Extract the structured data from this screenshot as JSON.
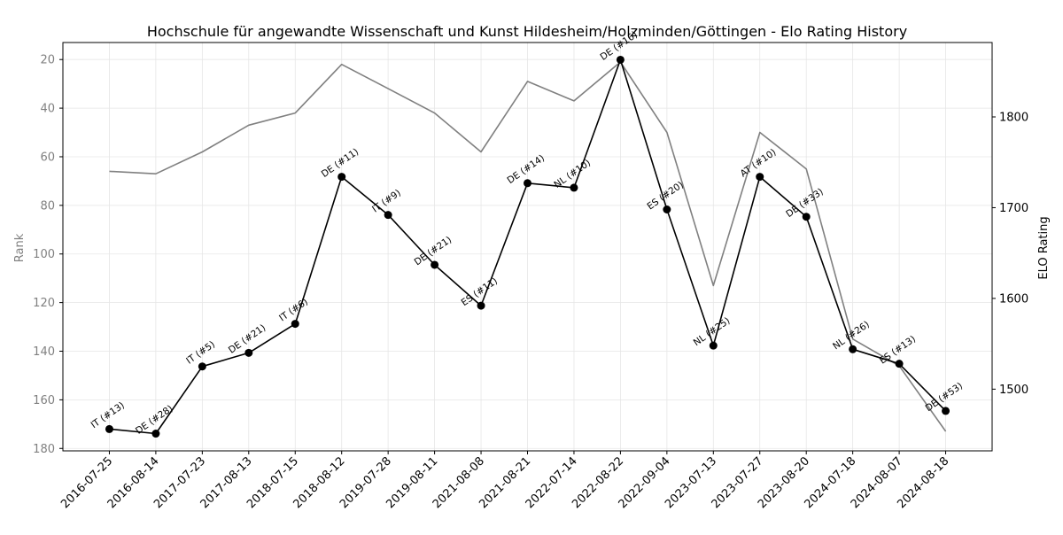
{
  "chart_data": {
    "type": "line",
    "title": "Hochschule für angewandte Wissenschaft und Kunst Hildesheim/Holzminden/Göttingen - Elo Rating History",
    "ylabel_left": "Rank",
    "ylabel_right": "ELO Rating",
    "categories": [
      "2016-07-25",
      "2016-08-14",
      "2017-07-23",
      "2017-08-13",
      "2018-07-15",
      "2018-08-12",
      "2019-07-28",
      "2019-08-11",
      "2021-08-08",
      "2021-08-21",
      "2022-07-14",
      "2022-08-22",
      "2022-09-04",
      "2023-07-13",
      "2023-07-27",
      "2023-08-20",
      "2024-07-18",
      "2024-08-07",
      "2024-08-18"
    ],
    "rank_axis": {
      "ylim": [
        181,
        13
      ],
      "inverted": true,
      "ticks": [
        20,
        40,
        60,
        80,
        100,
        120,
        140,
        160,
        180
      ]
    },
    "elo_axis": {
      "ylim": [
        1432,
        1882
      ],
      "ticks": [
        1500,
        1600,
        1700,
        1800
      ]
    },
    "series": [
      {
        "key": "rank",
        "axis": "left",
        "color": "#808080",
        "values": [
          66,
          67,
          58,
          47,
          42,
          22,
          32,
          42,
          58,
          29,
          37,
          21,
          50,
          113,
          50,
          65,
          135,
          146,
          173
        ]
      },
      {
        "key": "elo",
        "axis": "right",
        "color": "#000000",
        "marker": "circle",
        "values": [
          1456,
          1451,
          1525,
          1540,
          1572,
          1734,
          1692,
          1637,
          1592,
          1727,
          1722,
          1863,
          1698,
          1548,
          1734,
          1690,
          1544,
          1528,
          1476
        ],
        "labels": [
          "IT (#13)",
          "DE (#28)",
          "IT (#5)",
          "DE (#21)",
          "IT (#6)",
          "DE (#11)",
          "IT (#9)",
          "DE (#21)",
          "ES (#11)",
          "DE (#14)",
          "NL (#10)",
          "DE (#16)",
          "ES (#20)",
          "NL (#25)",
          "AT (#10)",
          "DE (#33)",
          "NL (#26)",
          "ES (#13)",
          "DE (#53)"
        ]
      }
    ],
    "grid": true,
    "legend": "none"
  }
}
